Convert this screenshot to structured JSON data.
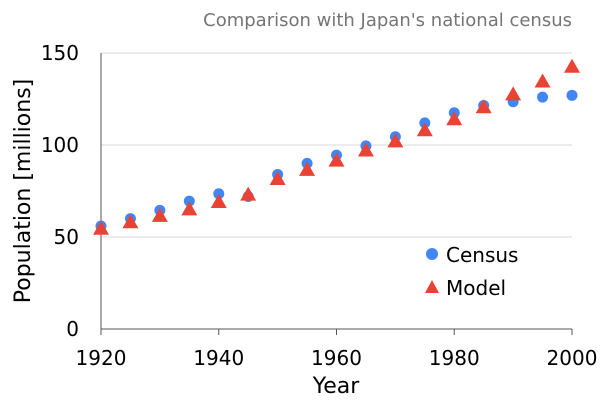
{
  "chart_data": {
    "type": "scatter",
    "title": "Comparison with Japan's national census",
    "xlabel": "Year",
    "ylabel": "Population [millions]",
    "xlim": [
      1920,
      2000
    ],
    "ylim": [
      0,
      150
    ],
    "xticks": [
      1920,
      1940,
      1960,
      1980,
      2000
    ],
    "yticks": [
      0,
      50,
      100,
      150
    ],
    "grid": "horizontal",
    "legend_position": "bottom-right",
    "series": [
      {
        "name": "Census",
        "marker": "circle",
        "color": "#4285f4",
        "x": [
          1920,
          1925,
          1930,
          1935,
          1940,
          1945,
          1950,
          1955,
          1960,
          1965,
          1970,
          1975,
          1980,
          1985,
          1990,
          1995,
          2000
        ],
        "y": [
          56,
          60,
          64.5,
          69.5,
          73.5,
          72,
          84,
          90,
          94.5,
          99.5,
          104.5,
          112,
          117.5,
          121.5,
          123.5,
          126,
          127
        ]
      },
      {
        "name": "Model",
        "marker": "triangle",
        "color": "#ea4335",
        "x": [
          1920,
          1925,
          1930,
          1935,
          1940,
          1945,
          1950,
          1955,
          1960,
          1965,
          1970,
          1975,
          1980,
          1985,
          1990,
          1995,
          2000
        ],
        "y": [
          54.5,
          58,
          61.5,
          65,
          69,
          73,
          81.5,
          86.5,
          91.5,
          97,
          102,
          108,
          114,
          120.5,
          127.5,
          134.5,
          142.5
        ]
      }
    ]
  }
}
